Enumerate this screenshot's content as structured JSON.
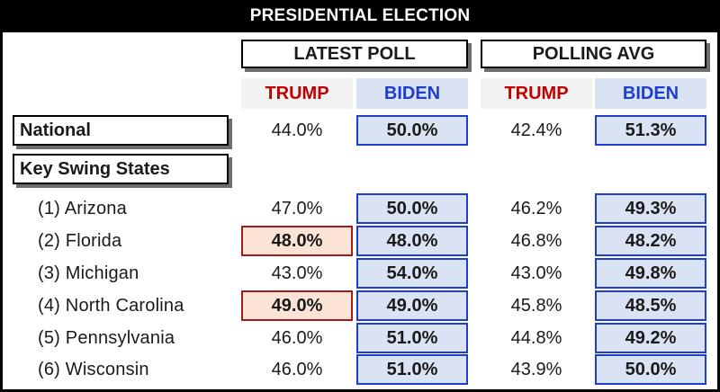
{
  "title": "PRESIDENTIAL ELECTION",
  "chart_data": {
    "type": "table",
    "title": "PRESIDENTIAL ELECTION",
    "groups": [
      "LATEST POLL",
      "POLLING AVG"
    ],
    "candidates": [
      "TRUMP",
      "BIDEN"
    ],
    "national": {
      "label": "National",
      "latest": {
        "trump": "44.0%",
        "biden": "50.0%"
      },
      "avg": {
        "trump": "42.4%",
        "biden": "51.3%"
      },
      "highlight": {
        "latest": "biden",
        "avg": "biden"
      }
    },
    "swing_label": "Key Swing States",
    "states": [
      {
        "label": "(1) Arizona",
        "latest": {
          "trump": "47.0%",
          "biden": "50.0%"
        },
        "avg": {
          "trump": "46.2%",
          "biden": "49.3%"
        },
        "highlight": {
          "latest": "biden",
          "avg": "biden"
        }
      },
      {
        "label": "(2) Florida",
        "latest": {
          "trump": "48.0%",
          "biden": "48.0%"
        },
        "avg": {
          "trump": "46.8%",
          "biden": "48.2%"
        },
        "highlight": {
          "latest": "both",
          "avg": "biden"
        }
      },
      {
        "label": "(3) Michigan",
        "latest": {
          "trump": "43.0%",
          "biden": "54.0%"
        },
        "avg": {
          "trump": "43.0%",
          "biden": "49.8%"
        },
        "highlight": {
          "latest": "biden",
          "avg": "biden"
        }
      },
      {
        "label": "(4) North Carolina",
        "latest": {
          "trump": "49.0%",
          "biden": "49.0%"
        },
        "avg": {
          "trump": "45.8%",
          "biden": "48.5%"
        },
        "highlight": {
          "latest": "both",
          "avg": "biden"
        }
      },
      {
        "label": "(5) Pennsylvania",
        "latest": {
          "trump": "46.0%",
          "biden": "51.0%"
        },
        "avg": {
          "trump": "44.8%",
          "biden": "49.2%"
        },
        "highlight": {
          "latest": "biden",
          "avg": "biden"
        }
      },
      {
        "label": "(6) Wisconsin",
        "latest": {
          "trump": "46.0%",
          "biden": "51.0%"
        },
        "avg": {
          "trump": "43.9%",
          "biden": "50.0%"
        },
        "highlight": {
          "latest": "biden",
          "avg": "biden"
        }
      }
    ]
  },
  "colors": {
    "trump": "#c00000",
    "biden": "#1f3ec9",
    "biden_fill": "#dae3f3",
    "trump_fill": "#fbe3d6",
    "title_bg": "#000000"
  }
}
